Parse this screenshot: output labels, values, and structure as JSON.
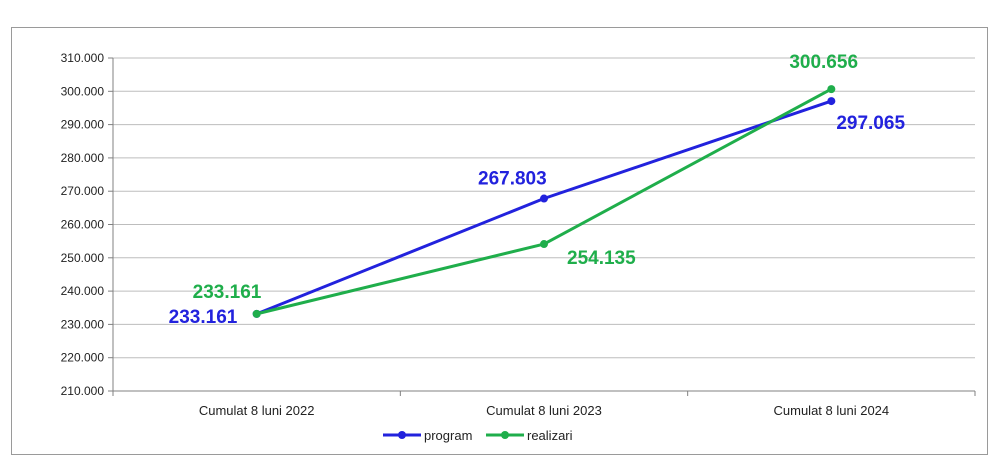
{
  "chart_data": {
    "type": "line",
    "categories": [
      "Cumulat 8 luni 2022",
      "Cumulat 8 luni 2023",
      "Cumulat 8 luni 2024"
    ],
    "series": [
      {
        "name": "program",
        "color": "#2222dd",
        "values": [
          233.161,
          267.803,
          297.065
        ],
        "labels": [
          "233.161",
          "267.803",
          "297.065"
        ]
      },
      {
        "name": "realizari",
        "color": "#1fae4b",
        "values": [
          233.161,
          254.135,
          300.656
        ],
        "labels": [
          "233.161",
          "254.135",
          "300.656"
        ]
      }
    ],
    "ylim": [
      210,
      310
    ],
    "yticks": [
      210,
      220,
      230,
      240,
      250,
      260,
      270,
      280,
      290,
      300,
      310
    ],
    "ytick_labels": [
      "210.000",
      "220.000",
      "230.000",
      "240.000",
      "250.000",
      "260.000",
      "270.000",
      "280.000",
      "290.000",
      "300.000",
      "310.000"
    ],
    "grid": true,
    "legend": "bottom"
  }
}
